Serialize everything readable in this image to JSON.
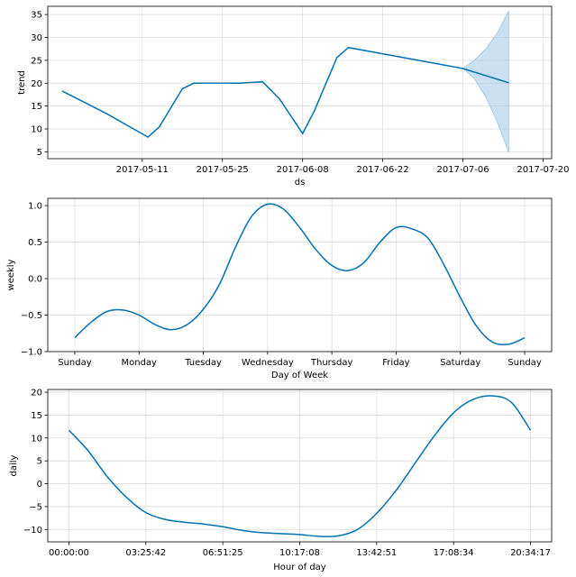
{
  "chart_data": [
    {
      "type": "line",
      "ylabel": "trend",
      "xlabel": "ds",
      "line_color": "#0072b2",
      "band_color": "#9ec7e4",
      "x_ticks": [
        "2017-05-11",
        "2017-05-25",
        "2017-06-08",
        "2017-06-22",
        "2017-07-06",
        "2017-07-20"
      ],
      "x_tick_days": [
        14,
        28,
        42,
        56,
        70,
        84
      ],
      "x_range_days": [
        -2.5,
        85.5
      ],
      "y_ticks": [
        5,
        10,
        15,
        20,
        25,
        30,
        35
      ],
      "ylim": [
        3.5,
        36.8
      ],
      "series": [
        {
          "x_days": [
            0,
            8,
            15,
            17,
            21,
            23,
            31,
            35,
            38,
            42,
            44,
            48,
            50,
            70,
            78
          ],
          "values": [
            18.3,
            13.2,
            8.2,
            10.5,
            18.8,
            20.0,
            20.0,
            20.3,
            16.5,
            9.0,
            13.8,
            25.6,
            27.8,
            23.2,
            20.1
          ]
        }
      ],
      "uncertainty": {
        "x_days": [
          70,
          72,
          74,
          76,
          78
        ],
        "upper": [
          23.2,
          25.0,
          27.5,
          31.0,
          35.8
        ],
        "lower": [
          23.2,
          21.0,
          17.0,
          11.5,
          4.8
        ]
      }
    },
    {
      "type": "line",
      "ylabel": "weekly",
      "xlabel": "Day of Week",
      "line_color": "#0072b2",
      "x_ticks": [
        "Sunday",
        "Monday",
        "Tuesday",
        "Wednesday",
        "Thursday",
        "Friday",
        "Saturday",
        "Sunday"
      ],
      "y_ticks": [
        -1.0,
        -0.5,
        0.0,
        0.5,
        1.0
      ],
      "y_tick_labels": [
        "−1.0",
        "−0.5",
        "0.0",
        "0.5",
        "1.0"
      ],
      "ylim": [
        -1.0,
        1.1
      ],
      "x_range": [
        -0.42,
        7.42
      ],
      "series": [
        {
          "x": [
            0,
            0.25,
            0.5,
            0.75,
            1,
            1.25,
            1.5,
            1.75,
            2,
            2.25,
            2.5,
            2.75,
            3,
            3.25,
            3.5,
            3.75,
            4,
            4.25,
            4.5,
            4.75,
            5,
            5.25,
            5.5,
            5.75,
            6,
            6.25,
            6.5,
            6.75,
            7
          ],
          "values": [
            -0.81,
            -0.6,
            -0.45,
            -0.43,
            -0.5,
            -0.63,
            -0.7,
            -0.63,
            -0.42,
            -0.08,
            0.43,
            0.85,
            1.02,
            0.95,
            0.7,
            0.4,
            0.18,
            0.11,
            0.22,
            0.5,
            0.7,
            0.68,
            0.55,
            0.18,
            -0.26,
            -0.65,
            -0.87,
            -0.9,
            -0.81
          ]
        }
      ]
    },
    {
      "type": "line",
      "ylabel": "daily",
      "xlabel": "Hour of day",
      "line_color": "#0072b2",
      "x_ticks": [
        "00:00:00",
        "03:25:42",
        "06:51:25",
        "10:17:08",
        "13:42:51",
        "17:08:34",
        "20:34:17",
        "00:00:00"
      ],
      "y_ticks": [
        -10,
        -5,
        0,
        5,
        10,
        15,
        20
      ],
      "y_tick_labels": [
        "−10",
        "−5",
        "0",
        "5",
        "10",
        "15",
        "20"
      ],
      "ylim": [
        -12.7,
        20.6
      ],
      "x_range": [
        -1.1,
        25.1
      ],
      "series": [
        {
          "x": [
            0,
            1,
            2,
            3,
            4,
            5,
            6,
            7,
            8,
            9,
            10,
            11,
            12,
            13,
            14,
            15,
            16,
            17,
            18,
            19,
            20,
            21,
            22,
            23,
            24
          ],
          "values": [
            11.7,
            7.2,
            1.5,
            -3.0,
            -6.3,
            -7.8,
            -8.4,
            -8.8,
            -9.4,
            -10.2,
            -10.7,
            -10.9,
            -11.1,
            -11.5,
            -11.4,
            -10.0,
            -6.5,
            -1.5,
            4.5,
            10.5,
            15.5,
            18.4,
            19.2,
            17.8,
            11.7
          ]
        }
      ]
    }
  ]
}
